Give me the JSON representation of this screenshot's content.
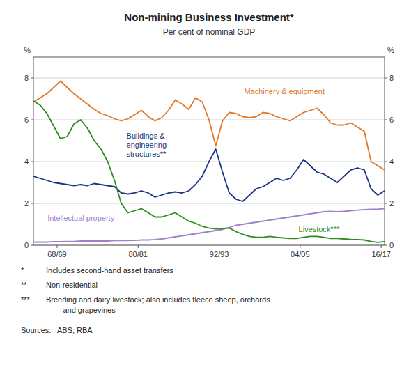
{
  "chart_data": {
    "type": "line",
    "title": "Non-mining Business Investment*",
    "subtitle": "Per cent of nominal GDP",
    "ylabel": "%",
    "y2label": "%",
    "x": [
      1965,
      1966,
      1967,
      1968,
      1969,
      1970,
      1971,
      1972,
      1973,
      1974,
      1975,
      1976,
      1977,
      1978,
      1979,
      1980,
      1981,
      1982,
      1983,
      1984,
      1985,
      1986,
      1987,
      1988,
      1989,
      1990,
      1991,
      1992,
      1993,
      1994,
      1995,
      1996,
      1997,
      1998,
      1999,
      2000,
      2001,
      2002,
      2003,
      2004,
      2005,
      2006,
      2007,
      2008,
      2009,
      2010,
      2011,
      2012,
      2013,
      2014,
      2015,
      2016,
      2017
    ],
    "xlim": [
      1965,
      2017
    ],
    "xticks": [
      {
        "value": 1968.5,
        "label": "68/69"
      },
      {
        "value": 1980.5,
        "label": "80/81"
      },
      {
        "value": 1992.5,
        "label": "92/93"
      },
      {
        "value": 2004.5,
        "label": "04/05"
      },
      {
        "value": 2016.5,
        "label": "16/17"
      }
    ],
    "ylim": [
      0,
      9
    ],
    "yticks": [
      0,
      2,
      4,
      6,
      8
    ],
    "y2lim": [
      0,
      9
    ],
    "y2ticks": [
      0,
      2,
      4,
      6,
      8
    ],
    "grid": true,
    "series": [
      {
        "name": "Machinery & equipment",
        "color": "#E07828",
        "values": [
          6.85,
          7.05,
          7.25,
          7.55,
          7.85,
          7.55,
          7.25,
          7.0,
          6.75,
          6.5,
          6.3,
          6.2,
          6.05,
          5.95,
          6.05,
          6.25,
          6.45,
          6.15,
          5.95,
          6.1,
          6.45,
          6.95,
          6.75,
          6.5,
          7.05,
          6.85,
          6.0,
          4.75,
          5.95,
          6.35,
          6.3,
          6.15,
          6.1,
          6.15,
          6.35,
          6.3,
          6.15,
          6.05,
          5.95,
          6.15,
          6.35,
          6.45,
          6.55,
          6.25,
          5.85,
          5.75,
          5.75,
          5.85,
          5.65,
          5.45,
          4.0,
          3.8,
          3.6
        ]
      },
      {
        "name": "Buildings &\nengineering\nstructures**",
        "color": "#1A3480",
        "values": [
          3.3,
          3.2,
          3.1,
          3.0,
          2.95,
          2.9,
          2.85,
          2.9,
          2.85,
          2.95,
          2.9,
          2.85,
          2.8,
          2.5,
          2.45,
          2.5,
          2.6,
          2.5,
          2.3,
          2.4,
          2.5,
          2.55,
          2.5,
          2.6,
          2.9,
          3.3,
          4.0,
          4.6,
          3.5,
          2.5,
          2.2,
          2.1,
          2.4,
          2.7,
          2.8,
          3.0,
          3.2,
          3.1,
          3.2,
          3.6,
          4.1,
          3.8,
          3.5,
          3.4,
          3.2,
          3.0,
          3.3,
          3.6,
          3.7,
          3.6,
          2.7,
          2.4,
          2.6
        ]
      },
      {
        "name": "Intellectual property",
        "color": "#A080C8",
        "values": [
          0.15,
          0.15,
          0.15,
          0.17,
          0.17,
          0.18,
          0.18,
          0.2,
          0.2,
          0.2,
          0.2,
          0.2,
          0.22,
          0.22,
          0.22,
          0.23,
          0.25,
          0.25,
          0.27,
          0.3,
          0.35,
          0.4,
          0.45,
          0.5,
          0.55,
          0.6,
          0.65,
          0.7,
          0.75,
          0.85,
          0.95,
          1.0,
          1.05,
          1.1,
          1.15,
          1.2,
          1.25,
          1.3,
          1.35,
          1.4,
          1.45,
          1.5,
          1.55,
          1.6,
          1.62,
          1.6,
          1.62,
          1.65,
          1.68,
          1.7,
          1.72,
          1.73,
          1.75
        ]
      },
      {
        "name": "Livestock***",
        "color": "#2E8B20",
        "values": [
          6.9,
          6.7,
          6.3,
          5.7,
          5.1,
          5.2,
          5.8,
          6.0,
          5.6,
          5.0,
          4.6,
          4.0,
          3.1,
          2.0,
          1.55,
          1.65,
          1.75,
          1.55,
          1.35,
          1.35,
          1.45,
          1.55,
          1.35,
          1.15,
          1.05,
          0.9,
          0.82,
          0.78,
          0.8,
          0.82,
          0.65,
          0.52,
          0.42,
          0.38,
          0.38,
          0.42,
          0.38,
          0.35,
          0.32,
          0.32,
          0.38,
          0.42,
          0.42,
          0.38,
          0.32,
          0.32,
          0.3,
          0.28,
          0.27,
          0.25,
          0.18,
          0.14,
          0.17
        ]
      }
    ],
    "footnotes": [
      {
        "symbol": "*",
        "text": "Includes second-hand asset transfers"
      },
      {
        "symbol": "**",
        "text": "Non-residential"
      },
      {
        "symbol": "***",
        "text": "Breeding and dairy livestock; also includes fleece sheep, orchards\n        and grapevines"
      }
    ],
    "source": "Sources:   ABS; RBA"
  }
}
